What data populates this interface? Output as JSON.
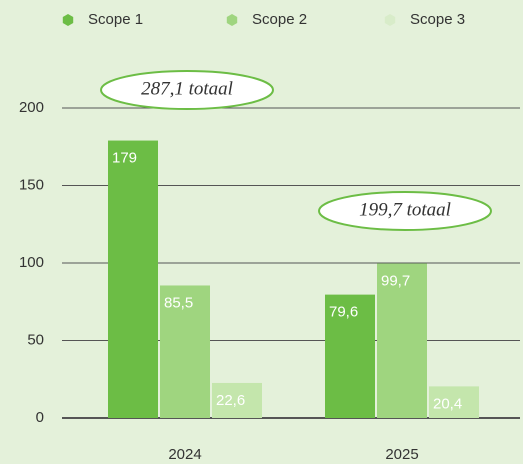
{
  "chart_data": {
    "type": "bar",
    "categories": [
      "2024",
      "2025"
    ],
    "series": [
      {
        "name": "Scope 1",
        "color": "#6cbd45",
        "values": [
          179,
          79.6
        ],
        "value_labels": [
          "179",
          "79,6"
        ]
      },
      {
        "name": "Scope 2",
        "color": "#9fd57f",
        "values": [
          85.5,
          99.7
        ],
        "value_labels": [
          "85,5",
          "99,7"
        ]
      },
      {
        "name": "Scope 3",
        "color": "#c4e6ac",
        "values": [
          22.6,
          20.4
        ],
        "value_labels": [
          "22,6",
          "20,4"
        ]
      }
    ],
    "annotations": [
      "287,1 totaal",
      "199,7 totaal"
    ],
    "ylim": [
      0,
      200
    ],
    "yticks": [
      0,
      50,
      100,
      150,
      200
    ],
    "grid": true,
    "legend": "top"
  }
}
